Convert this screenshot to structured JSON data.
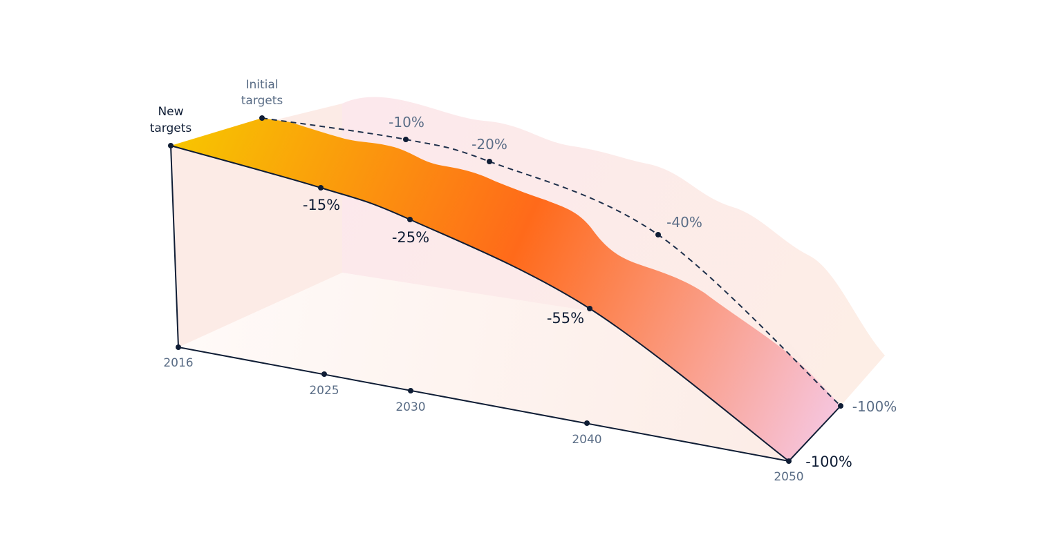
{
  "chart_data": {
    "type": "area",
    "x": [
      2016,
      2025,
      2030,
      2040,
      2050
    ],
    "series": [
      {
        "name": "New targets",
        "points": [
          {
            "x": 2016,
            "y": 0,
            "label": ""
          },
          {
            "x": 2025,
            "y": -15,
            "label": "-15%"
          },
          {
            "x": 2030,
            "y": -25,
            "label": "-25%"
          },
          {
            "x": 2040,
            "y": -55,
            "label": "-55%"
          },
          {
            "x": 2050,
            "y": -100,
            "label": "-100%"
          }
        ]
      },
      {
        "name": "Initial targets",
        "points": [
          {
            "x": 2016,
            "y": 0,
            "label": ""
          },
          {
            "x": 2025,
            "y": -10,
            "label": "-10%"
          },
          {
            "x": 2030,
            "y": -20,
            "label": "-20%"
          },
          {
            "x": 2040,
            "y": -40,
            "label": "-40%"
          },
          {
            "x": 2050,
            "y": -100,
            "label": "-100%"
          }
        ]
      }
    ],
    "year_labels": [
      "2016",
      "2025",
      "2030",
      "2040",
      "2050"
    ],
    "legend": {
      "new_targets": [
        "New",
        "targets"
      ],
      "initial_targets": [
        "Initial",
        "targets"
      ]
    },
    "title": "",
    "xlabel": "",
    "ylabel": "",
    "ylim": [
      -100,
      0
    ],
    "grid": false,
    "colors": {
      "new_line": "#0f1d35",
      "initial_line": "#1f304b",
      "gradient_start": "#f7c600",
      "gradient_mid": "#ff6a1a",
      "gradient_end": "#f6c5dd",
      "back_wall": "#fbe4e6",
      "floor": "#fdf1ec",
      "side_wall": "#fbe7e2"
    }
  }
}
